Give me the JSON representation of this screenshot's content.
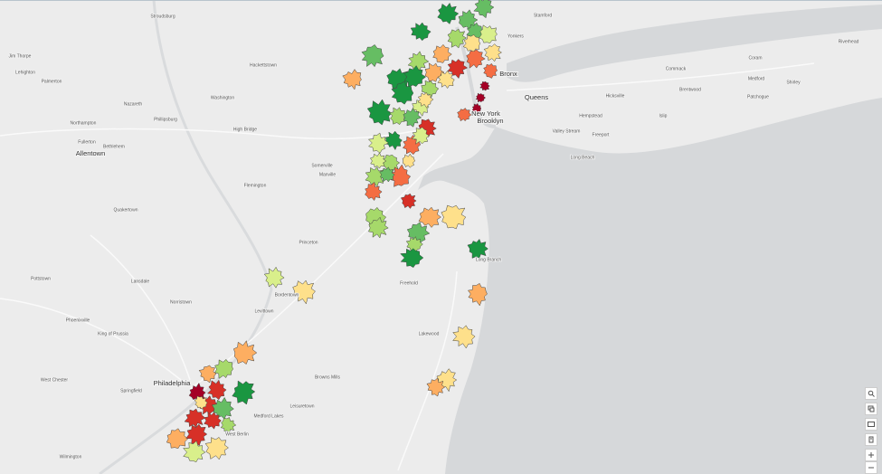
{
  "map": {
    "places": [
      "Bronx",
      "Queens",
      "New York",
      "Brooklyn",
      "Allentown",
      "Philadelphia",
      "Stroudsburg",
      "Jim Thorpe",
      "Lehighton",
      "Palmerton",
      "Hackettstown",
      "Washington",
      "Nazareth",
      "Northampton",
      "Phillipsburg",
      "Fullerton",
      "Bethlehem",
      "High Bridge",
      "Flemington",
      "Somerville",
      "Manville",
      "Quakertown",
      "Princeton",
      "Lansdale",
      "Pottstown",
      "Norristown",
      "Levittown",
      "Bordentown",
      "Phoenixville",
      "King of Prussia",
      "West Chester",
      "Springfield",
      "Freehold",
      "Lakewood",
      "Long Branch",
      "Browns Mills",
      "Leisuretown",
      "Medford Lakes",
      "West Berlin",
      "Wilmington",
      "Yonkers",
      "Stamford",
      "Hicksville",
      "Commack",
      "Brentwood",
      "Islip",
      "Valley Stream",
      "Freeport",
      "Long Beach",
      "Coram",
      "Medford",
      "Shirley",
      "Riverhead",
      "Patchogue",
      "Hempstead"
    ]
  }
}
